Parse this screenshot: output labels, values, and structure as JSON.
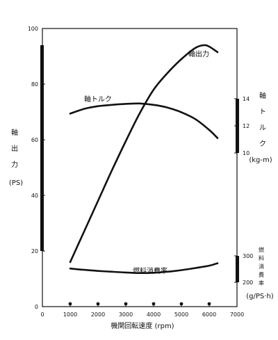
{
  "chart_data": {
    "type": "line",
    "xlabel": "機関回転速度 (rpm)",
    "x_ticks": [
      "0",
      "1000",
      "2000",
      "3000",
      "4000",
      "5000",
      "6000",
      "7000"
    ],
    "xlim": [
      0,
      7000
    ],
    "grid": false,
    "axes": {
      "power": {
        "label_chars": [
          "軸",
          "出",
          "力"
        ],
        "unit": "(PS)",
        "ticks": [
          "0",
          "20",
          "40",
          "60",
          "80",
          "100"
        ],
        "range": [
          0,
          100
        ]
      },
      "torque": {
        "label_chars": [
          "軸",
          "ト",
          "ル",
          "ク"
        ],
        "unit": "(kg-m)",
        "ticks": [
          "10",
          "12",
          "14"
        ],
        "range": [
          10,
          14
        ]
      },
      "fuel": {
        "label_chars": [
          "燃",
          "料",
          "消",
          "費",
          "率"
        ],
        "unit": "(g/PS·h)",
        "ticks": [
          "200",
          "300"
        ],
        "range": [
          200,
          300
        ]
      }
    },
    "series": [
      {
        "name": "軸出力",
        "axis": "power",
        "x": [
          1000,
          1500,
          2000,
          2500,
          3000,
          3500,
          4000,
          4500,
          5000,
          5500,
          5800,
          6000,
          6300
        ],
        "y": [
          16,
          27,
          38,
          49,
          59.5,
          69.5,
          78,
          84,
          89,
          93,
          94,
          93.5,
          91.5
        ]
      },
      {
        "name": "軸トルク",
        "axis": "torque",
        "x": [
          1000,
          1500,
          2000,
          2500,
          3000,
          3500,
          4000,
          4500,
          5000,
          5500,
          6000,
          6300
        ],
        "y": [
          12.9,
          13.25,
          13.45,
          13.55,
          13.62,
          13.65,
          13.55,
          13.35,
          13.0,
          12.5,
          11.7,
          11.1
        ]
      },
      {
        "name": "燃料消費率",
        "axis": "fuel",
        "x": [
          1000,
          1500,
          2000,
          2500,
          3000,
          3500,
          4000,
          4500,
          5000,
          5500,
          6000,
          6300
        ],
        "y": [
          252,
          247,
          243,
          240,
          237,
          235,
          236,
          240,
          246,
          254,
          263,
          272
        ]
      }
    ],
    "measurement_points_rpm": [
      1000,
      2000,
      3000,
      4000,
      5000,
      6000
    ]
  }
}
